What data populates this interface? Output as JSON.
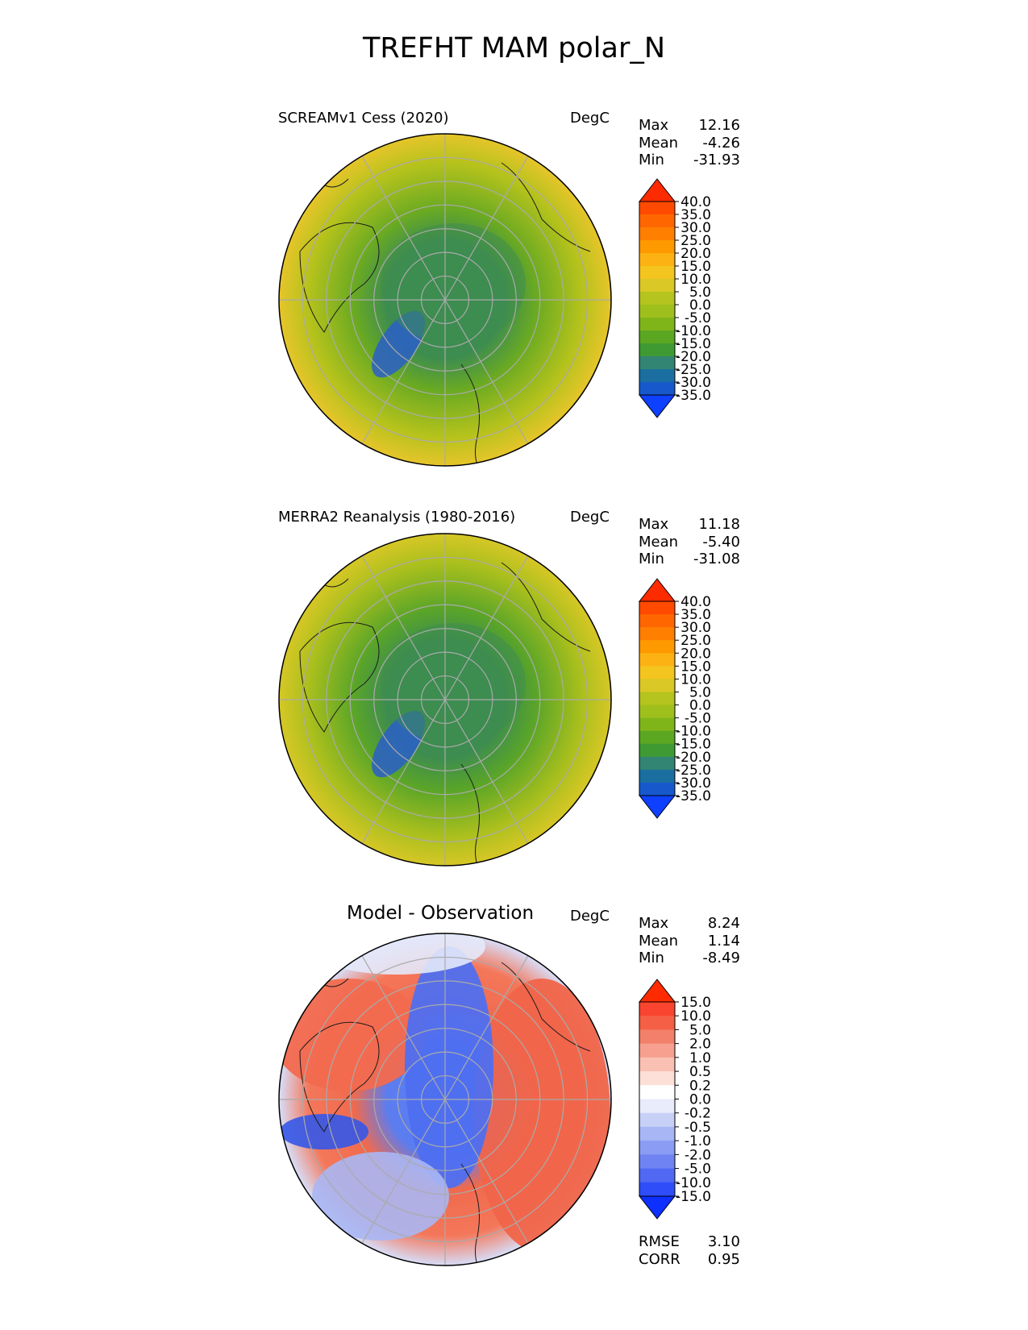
{
  "figure": {
    "title": "TREFHT MAM polar_N"
  },
  "panels": [
    {
      "title": "SCREAMv1 Cess (2020)",
      "units": "DegC",
      "stats": [
        {
          "label": "Max",
          "value": "12.16"
        },
        {
          "label": "Mean",
          "value": "-4.26"
        },
        {
          "label": "Min",
          "value": "-31.93"
        }
      ],
      "colorbar": {
        "labels": [
          "40.0",
          "35.0",
          "30.0",
          "25.0",
          "20.0",
          "15.0",
          "10.0",
          "5.0",
          "0.0",
          "-5.0",
          "-10.0",
          "-15.0",
          "-20.0",
          "-25.0",
          "-30.0",
          "-35.0"
        ],
        "colors": [
          "#ff2b00",
          "#ff4a00",
          "#ff6600",
          "#ff7f00",
          "#ff9900",
          "#fbb212",
          "#f3c51e",
          "#d9c825",
          "#b5c41e",
          "#9ebf1c",
          "#80b51a",
          "#5ca722",
          "#3f9a34",
          "#338573",
          "#1a6fa0",
          "#1759cc",
          "#0d40ff"
        ]
      },
      "field": {
        "pole": "#3d8c50",
        "mid": "#6aaa22",
        "edge": "#b4c21c",
        "rim": "#e6c52a",
        "cold": "#2a5fc8"
      }
    },
    {
      "title": "MERRA2 Reanalysis (1980-2016)",
      "units": "DegC",
      "stats": [
        {
          "label": "Max",
          "value": "11.18"
        },
        {
          "label": "Mean",
          "value": "-5.40"
        },
        {
          "label": "Min",
          "value": "-31.08"
        }
      ],
      "colorbar": {
        "labels": [
          "40.0",
          "35.0",
          "30.0",
          "25.0",
          "20.0",
          "15.0",
          "10.0",
          "5.0",
          "0.0",
          "-5.0",
          "-10.0",
          "-15.0",
          "-20.0",
          "-25.0",
          "-30.0",
          "-35.0"
        ],
        "colors": [
          "#ff2b00",
          "#ff4a00",
          "#ff6600",
          "#ff7f00",
          "#ff9900",
          "#fbb212",
          "#f3c51e",
          "#d9c825",
          "#b5c41e",
          "#9ebf1c",
          "#80b51a",
          "#5ca722",
          "#3f9a34",
          "#338573",
          "#1a6fa0",
          "#1759cc",
          "#0d40ff"
        ]
      },
      "field": {
        "pole": "#3d8c50",
        "mid": "#5aa528",
        "edge": "#a9bf1d",
        "rim": "#d6c726",
        "cold": "#2a5fc8"
      }
    },
    {
      "title": "Model - Observation",
      "units": "DegC",
      "stats": [
        {
          "label": "Max",
          "value": "8.24"
        },
        {
          "label": "Mean",
          "value": "1.14"
        },
        {
          "label": "Min",
          "value": "-8.49"
        }
      ],
      "colorbar": {
        "labels": [
          "15.0",
          "10.0",
          "5.0",
          "2.0",
          "1.0",
          "0.5",
          "0.2",
          "0.0",
          "-0.2",
          "-0.5",
          "-1.0",
          "-2.0",
          "-5.0",
          "-10.0",
          "-15.0"
        ],
        "colors": [
          "#ff2b00",
          "#f94430",
          "#f45f45",
          "#f3806a",
          "#f7a08f",
          "#f9c0b3",
          "#fce0d8",
          "#ffffff",
          "#e8ecfb",
          "#c7d0f7",
          "#a8b6f5",
          "#8a9cf3",
          "#6f84f2",
          "#5068f2",
          "#2f4df8",
          "#0d2fff"
        ]
      },
      "field": {
        "pole": "#5b7df0",
        "mid": "#f06a4e",
        "edge": "#f4775a",
        "rim": "#d7ddf8",
        "cold": "#3f5fe8"
      }
    }
  ],
  "summary": [
    {
      "label": "RMSE",
      "value": "3.10"
    },
    {
      "label": "CORR",
      "value": "0.95"
    }
  ]
}
